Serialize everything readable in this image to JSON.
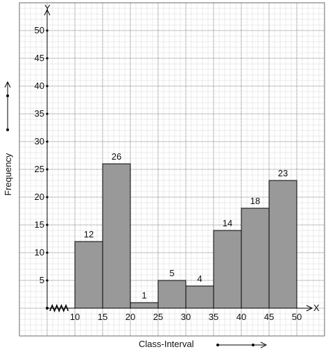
{
  "chart_data": {
    "type": "bar",
    "histogram": true,
    "categories": [
      "10-15",
      "15-20",
      "20-25",
      "25-30",
      "30-35",
      "35-40",
      "40-45",
      "45-50"
    ],
    "bin_edges": [
      10,
      15,
      20,
      25,
      30,
      35,
      40,
      45,
      50
    ],
    "values": [
      12,
      26,
      1,
      5,
      4,
      14,
      18,
      23
    ],
    "data_labels": [
      "12",
      "26",
      "1",
      "5",
      "4",
      "14",
      "18",
      "23"
    ],
    "x_tick_labels": [
      "10",
      "15",
      "20",
      "25",
      "30",
      "35",
      "40",
      "45",
      "50"
    ],
    "y_tick_labels": [
      "5",
      "10",
      "15",
      "20",
      "25",
      "30",
      "35",
      "40",
      "45",
      "50"
    ],
    "y_ticks": [
      5,
      10,
      15,
      20,
      25,
      30,
      35,
      40,
      45,
      50
    ],
    "xlabel": "Class-Interval",
    "ylabel": "Frequency",
    "x_axis_letter": "X",
    "y_axis_letter": "Y",
    "xlim": [
      10,
      50
    ],
    "ylim": [
      0,
      50
    ],
    "grid": true,
    "axis_break": "zigzag on x-axis near origin",
    "colors": {
      "bar_fill": "#999999",
      "bar_stroke": "#000000",
      "grid_major": "#555555",
      "grid_minor": "#b0b0b0",
      "axis": "#000000"
    }
  }
}
